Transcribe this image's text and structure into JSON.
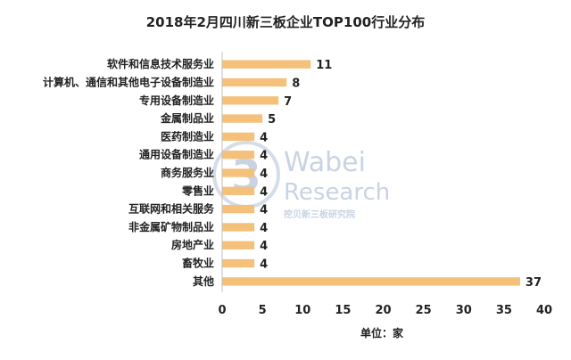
{
  "chart_data": {
    "type": "bar",
    "orientation": "horizontal",
    "title": "2018年2月四川新三板企业TOP100行业分布",
    "categories": [
      "软件和信息技术服务业",
      "计算机、通信和其他电子设备制造业",
      "专用设备制造业",
      "金属制品业",
      "医药制造业",
      "通用设备制造业",
      "商务服务业",
      "零售业",
      "互联网和相关服务",
      "非金属矿物制品业",
      "房地产业",
      "畜牧业",
      "其他"
    ],
    "values": [
      11,
      8,
      7,
      5,
      4,
      4,
      4,
      4,
      4,
      4,
      4,
      4,
      37
    ],
    "xlim": [
      0,
      40
    ],
    "xticks": [
      0,
      5,
      10,
      15,
      20,
      25,
      30,
      35,
      40
    ],
    "xlabel": "单位：家",
    "bar_color": "#f5c07a",
    "grid": false
  },
  "watermark": {
    "logo_mark": "3",
    "brand": "Wabei",
    "brand_line2": "Research",
    "tagline": "挖贝新三板研究院"
  }
}
